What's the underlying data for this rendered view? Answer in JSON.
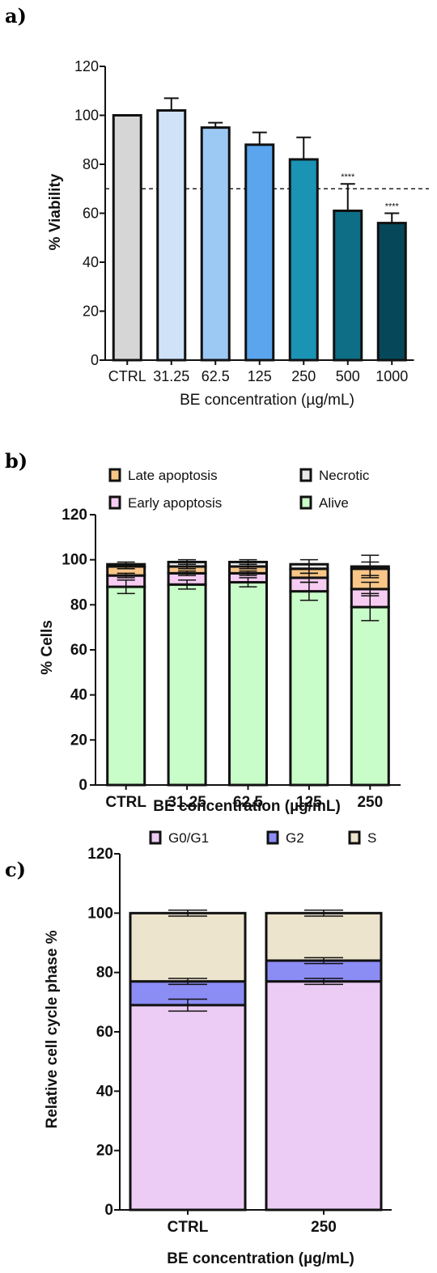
{
  "panels": {
    "a": "a)",
    "b": "b)",
    "c": "c)"
  },
  "chart_data": [
    {
      "id": "a",
      "type": "bar",
      "title": "",
      "xlabel": "BE concentration (µg/mL)",
      "ylabel": "% Viability",
      "ylim": [
        0,
        120
      ],
      "yticks": [
        "0",
        "20",
        "40",
        "60",
        "80",
        "100",
        "120"
      ],
      "categories": [
        "CTRL",
        "31.25",
        "62.5",
        "125",
        "250",
        "500",
        "1000"
      ],
      "values": [
        100,
        102,
        95,
        88,
        82,
        61,
        56
      ],
      "errors": [
        0,
        5,
        2,
        5,
        9,
        11,
        4
      ],
      "colors": [
        "#d6d6d6",
        "#cfe2f8",
        "#9cc8f4",
        "#5aa5ee",
        "#1a93b5",
        "#0d6e86",
        "#06485a"
      ],
      "significance": [
        "",
        "",
        "",
        "",
        "",
        "****",
        "****"
      ],
      "reference_line": 70,
      "grid": false
    },
    {
      "id": "b",
      "type": "bar",
      "stacked": true,
      "title": "",
      "xlabel": "BE concentration (µg/mL)",
      "ylabel": "% Cells",
      "ylim": [
        0,
        120
      ],
      "yticks": [
        "0",
        "20",
        "40",
        "60",
        "80",
        "100",
        "120"
      ],
      "categories": [
        "CTRL",
        "31.25",
        "62.5",
        "125",
        "250"
      ],
      "series": [
        {
          "name": "Alive",
          "color": "#c8fcc8",
          "values": [
            88,
            89,
            90,
            86,
            79
          ],
          "errors": [
            3,
            2,
            2,
            4,
            6
          ]
        },
        {
          "name": "Early apoptosis",
          "color": "#f7ccf2",
          "values": [
            5,
            5,
            4,
            6,
            8
          ],
          "errors": [
            1,
            1,
            1,
            2,
            3
          ]
        },
        {
          "name": "Late apoptosis",
          "color": "#f9c688",
          "values": [
            4,
            3,
            3,
            4,
            9
          ],
          "errors": [
            1,
            1,
            1,
            2,
            3
          ]
        },
        {
          "name": "Necrotic",
          "color": "#e8e8e8",
          "values": [
            1,
            2,
            2,
            2,
            1
          ],
          "errors": [
            1,
            1,
            1,
            2,
            5
          ]
        }
      ],
      "legend": {
        "placement": "top",
        "entries": [
          "Late apoptosis",
          "Necrotic",
          "Early apoptosis",
          "Alive"
        ]
      },
      "grid": false
    },
    {
      "id": "c",
      "type": "bar",
      "stacked": true,
      "title": "",
      "xlabel": "BE concentration (µg/mL)",
      "ylabel": "Relative cell cycle phase %",
      "ylim": [
        0,
        120
      ],
      "yticks": [
        "0",
        "20",
        "40",
        "60",
        "80",
        "100",
        "120"
      ],
      "categories": [
        "CTRL",
        "250"
      ],
      "series": [
        {
          "name": "G0/G1",
          "color": "#ecccf4",
          "values": [
            69,
            77
          ],
          "errors": [
            2,
            1
          ]
        },
        {
          "name": "G2",
          "color": "#8c8cf5",
          "values": [
            8,
            7
          ],
          "errors": [
            1,
            1
          ]
        },
        {
          "name": "S",
          "color": "#ece4cc",
          "values": [
            23,
            16
          ],
          "errors": [
            1,
            1
          ]
        }
      ],
      "legend": {
        "placement": "top",
        "entries": [
          "G0/G1",
          "G2",
          "S"
        ]
      },
      "grid": false
    }
  ]
}
